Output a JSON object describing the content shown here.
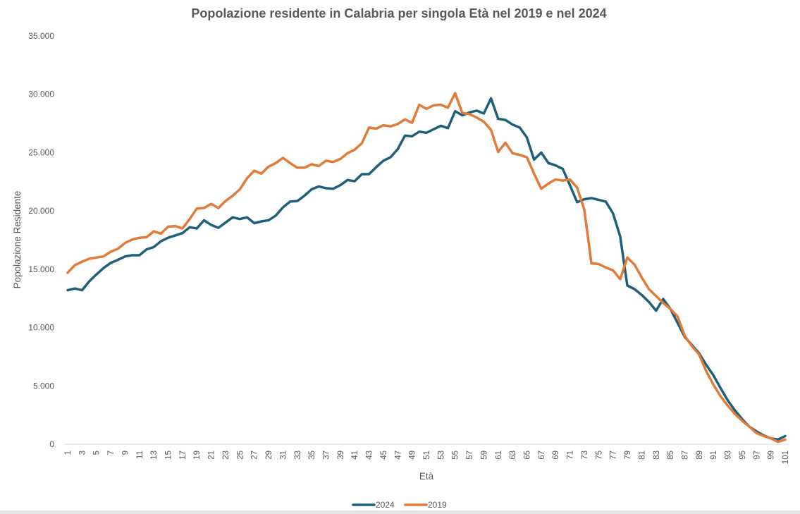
{
  "chart_data": {
    "type": "line",
    "title": "Popolazione residente in Calabria per singola Età nel 2019 e nel 2024",
    "xlabel": "Età",
    "ylabel": "Popolazione Residente",
    "ylim": [
      0,
      35000
    ],
    "yticks": [
      0,
      5000,
      10000,
      15000,
      20000,
      25000,
      30000,
      35000
    ],
    "ytick_labels": [
      "0",
      "5.000",
      "10.000",
      "15.000",
      "20.000",
      "25.000",
      "30.000",
      "35.000"
    ],
    "x": [
      1,
      2,
      3,
      4,
      5,
      6,
      7,
      8,
      9,
      10,
      11,
      12,
      13,
      14,
      15,
      16,
      17,
      18,
      19,
      20,
      21,
      22,
      23,
      24,
      25,
      26,
      27,
      28,
      29,
      30,
      31,
      32,
      33,
      34,
      35,
      36,
      37,
      38,
      39,
      40,
      41,
      42,
      43,
      44,
      45,
      46,
      47,
      48,
      49,
      50,
      51,
      52,
      53,
      54,
      55,
      56,
      57,
      58,
      59,
      60,
      61,
      62,
      63,
      64,
      65,
      66,
      67,
      68,
      69,
      70,
      71,
      72,
      73,
      74,
      75,
      76,
      77,
      78,
      79,
      80,
      81,
      82,
      83,
      84,
      85,
      86,
      87,
      88,
      89,
      90,
      91,
      92,
      93,
      94,
      95,
      96,
      97,
      98,
      99,
      100,
      101
    ],
    "xtick_labels": [
      "1",
      "3",
      "5",
      "7",
      "9",
      "11",
      "13",
      "15",
      "17",
      "19",
      "21",
      "23",
      "25",
      "27",
      "29",
      "31",
      "33",
      "35",
      "37",
      "39",
      "41",
      "43",
      "45",
      "47",
      "49",
      "51",
      "53",
      "55",
      "57",
      "59",
      "61",
      "63",
      "65",
      "67",
      "69",
      "71",
      "73",
      "75",
      "77",
      "79",
      "81",
      "83",
      "85",
      "87",
      "89",
      "91",
      "93",
      "95",
      "97",
      "99",
      "101"
    ],
    "grid": false,
    "legend_position": "bottom",
    "series": [
      {
        "name": "2024",
        "color": "#1f5f7a",
        "values": [
          13200,
          13350,
          13200,
          13950,
          14550,
          15100,
          15550,
          15800,
          16100,
          16200,
          16200,
          16700,
          16900,
          17400,
          17700,
          17900,
          18100,
          18600,
          18500,
          19200,
          18800,
          18550,
          19000,
          19450,
          19300,
          19450,
          18950,
          19100,
          19200,
          19600,
          20300,
          20800,
          20850,
          21300,
          21850,
          22100,
          21950,
          21900,
          22200,
          22650,
          22550,
          23150,
          23150,
          23750,
          24300,
          24600,
          25300,
          26450,
          26400,
          26800,
          26700,
          27000,
          27300,
          27100,
          28550,
          28200,
          28450,
          28600,
          28350,
          29650,
          27900,
          27800,
          27400,
          27150,
          26300,
          24400,
          25000,
          24100,
          23900,
          23600,
          22200,
          20750,
          21000,
          21100,
          20950,
          20800,
          19800,
          17800,
          13600,
          13300,
          12800,
          12200,
          11450,
          12450,
          11600,
          10400,
          9200,
          8500,
          7800,
          6800,
          5900,
          4800,
          3750,
          2900,
          2150,
          1500,
          1100,
          750,
          500,
          400,
          700
        ]
      },
      {
        "name": "2019",
        "color": "#e07b39",
        "values": [
          14700,
          15350,
          15650,
          15900,
          16000,
          16100,
          16500,
          16750,
          17250,
          17550,
          17700,
          17750,
          18250,
          18050,
          18650,
          18700,
          18500,
          19300,
          20200,
          20250,
          20600,
          20250,
          20850,
          21300,
          21850,
          22800,
          23450,
          23200,
          23800,
          24100,
          24550,
          24100,
          23700,
          23700,
          24000,
          23850,
          24300,
          24200,
          24450,
          24950,
          25250,
          25800,
          27150,
          27050,
          27350,
          27250,
          27450,
          27850,
          27550,
          29100,
          28750,
          29050,
          29100,
          28850,
          30100,
          28400,
          28300,
          28000,
          27650,
          26950,
          25050,
          25850,
          24950,
          24800,
          24600,
          23200,
          21900,
          22350,
          22700,
          22600,
          22700,
          22000,
          20100,
          15500,
          15450,
          15150,
          14900,
          14150,
          16000,
          15400,
          14300,
          13300,
          12700,
          12100,
          11600,
          10950,
          9300,
          8400,
          7700,
          6250,
          5100,
          4100,
          3300,
          2600,
          2000,
          1500,
          950,
          700,
          500,
          200,
          400
        ]
      }
    ]
  }
}
